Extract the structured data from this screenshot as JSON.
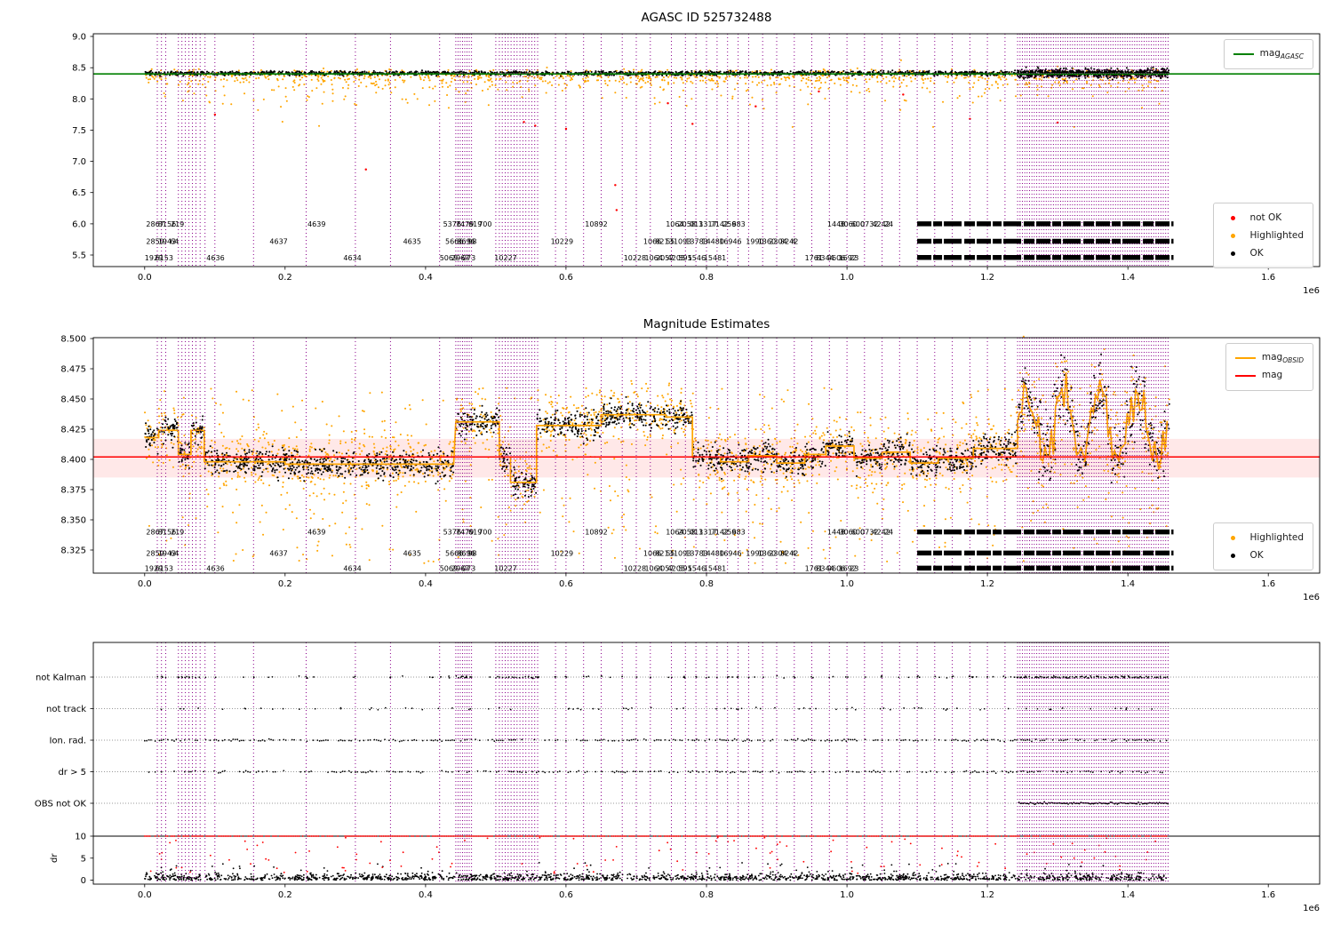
{
  "colors": {
    "background": "#ffffff",
    "axis": "#000000",
    "vline": "#8a008a",
    "green": "#008000",
    "orange": "#ffa500",
    "red": "#ff0000",
    "black": "#000000",
    "band_fill": "rgba(255,0,0,0.09)",
    "grid_dotted": "#999999"
  },
  "xaxis": {
    "ticks": [
      0.0,
      0.2,
      0.4,
      0.6,
      0.8,
      1.0,
      1.2,
      1.4,
      1.6
    ],
    "offset_label": "1e6",
    "xlim": [
      -0.0731,
      1.6731
    ]
  },
  "legends": {
    "top_line": {
      "prefix": "mag",
      "sub": "AGASC"
    },
    "top_markers": [
      {
        "label": "not OK"
      },
      {
        "label": "Highlighted"
      },
      {
        "label": "OK"
      }
    ],
    "mid_lines": [
      {
        "prefix": "mag",
        "sub": "OBSID"
      },
      {
        "prefix": "mag",
        "sub": ""
      }
    ],
    "mid_markers": [
      {
        "label": "Highlighted"
      },
      {
        "label": "OK"
      }
    ]
  },
  "chart_data": [
    {
      "type": "scatter",
      "title": "AGASC ID 525732488",
      "ylim": [
        5.315,
        9.043
      ],
      "yticks": [
        9.0,
        8.5,
        8.0,
        7.5,
        7.0,
        6.5,
        6.0,
        5.5
      ],
      "hline": {
        "y": 8.4,
        "label": "mag_AGASC"
      },
      "legend_entries": [
        "mag_AGASC",
        "not OK",
        "Highlighted",
        "OK"
      ],
      "gen": {
        "black_band": {
          "n": 2000,
          "y": 8.41,
          "sd": 0.02,
          "x0": 0.0,
          "x1": 1.455
        },
        "right_fuzz": {
          "n": 650,
          "x0": 1.243,
          "x1": 1.458,
          "y": 8.41,
          "sd": 0.045
        },
        "orange_fringe": {
          "n": 520,
          "y": 8.4,
          "sd": 0.045,
          "x0": 0.0,
          "x1": 1.455
        },
        "orange_low": {
          "n": 650,
          "top": 8.36,
          "decay": 0.13,
          "min": 7.55,
          "x0": 0.0,
          "x1": 1.455
        },
        "orange_high": [
          [
            1.077,
            8.62
          ],
          [
            1.3,
            8.52
          ]
        ],
        "red_points": [
          [
            0.1,
            7.75
          ],
          [
            0.315,
            6.87
          ],
          [
            0.54,
            7.63
          ],
          [
            0.556,
            7.57
          ],
          [
            0.6,
            7.52
          ],
          [
            0.67,
            6.62
          ],
          [
            0.672,
            6.22
          ],
          [
            0.745,
            7.93
          ],
          [
            0.78,
            7.6
          ],
          [
            0.87,
            7.88
          ],
          [
            0.96,
            8.12
          ],
          [
            1.08,
            8.07
          ],
          [
            1.175,
            7.68
          ],
          [
            1.3,
            7.62
          ]
        ]
      }
    },
    {
      "type": "scatter",
      "title": "Magnitude Estimates",
      "ylim": [
        8.3059,
        8.5007
      ],
      "yticks": [
        8.5,
        8.475,
        8.45,
        8.425,
        8.4,
        8.375,
        8.35,
        8.325
      ],
      "mag": 8.402,
      "mag_band": [
        8.385,
        8.417
      ],
      "legend_entries": [
        "mag_OBSID",
        "mag",
        "Highlighted",
        "OK"
      ],
      "segments": [
        [
          0.0,
          0.02,
          8.418
        ],
        [
          0.02,
          0.048,
          8.424
        ],
        [
          0.048,
          0.066,
          8.404
        ],
        [
          0.066,
          0.085,
          8.424
        ],
        [
          0.085,
          0.2,
          8.398
        ],
        [
          0.2,
          0.44,
          8.396
        ],
        [
          0.443,
          0.505,
          8.431
        ],
        [
          0.505,
          0.521,
          8.402
        ],
        [
          0.521,
          0.558,
          8.381
        ],
        [
          0.558,
          0.65,
          8.428
        ],
        [
          0.65,
          0.742,
          8.437
        ],
        [
          0.742,
          0.78,
          8.435
        ],
        [
          0.78,
          0.82,
          8.402
        ],
        [
          0.82,
          0.86,
          8.398
        ],
        [
          0.86,
          0.9,
          8.403
        ],
        [
          0.9,
          0.94,
          8.397
        ],
        [
          0.94,
          0.97,
          8.404
        ],
        [
          0.97,
          1.01,
          8.411
        ],
        [
          1.01,
          1.05,
          8.401
        ],
        [
          1.05,
          1.09,
          8.406
        ],
        [
          1.09,
          1.13,
          8.397
        ],
        [
          1.13,
          1.18,
          8.401
        ],
        [
          1.18,
          1.243,
          8.409
        ]
      ],
      "volatile": {
        "x0": 1.243,
        "x1": 1.458,
        "ymin": 8.363,
        "ymax": 8.49,
        "base": 8.427,
        "amp": 0.028
      },
      "gen": {
        "black_density": 1750,
        "black_sd": 0.0066,
        "orange_density": 1200,
        "orange_sd": 0.0145,
        "orange_sparse_n": 620
      }
    },
    {
      "type": "scatter",
      "title": "",
      "flag_rows": [
        "not Kalman",
        "not track",
        "Ion. rad.",
        "dr > 5",
        "OBS not OK"
      ],
      "dr": {
        "ticks": [
          10,
          5,
          0
        ],
        "hline": 10,
        "ylabel": "dr",
        "max": 10
      },
      "gen": {
        "not_kalman_extra_n": 45,
        "not_track_n": 85,
        "ion_run": [
          0.0,
          1.455,
          0.003,
          0.62
        ],
        "dr5_run": [
          0.0,
          1.455,
          0.003,
          0.5
        ],
        "obs_run": [
          1.245,
          1.458,
          0.002,
          1.0
        ],
        "dr_black_n": 1750,
        "red_line_run": [
          0.0,
          1.455,
          0.0025,
          0.82
        ],
        "red_mid_n": 115
      }
    }
  ],
  "vlines": {
    "singles": [
      0.018,
      0.024,
      0.03,
      0.048,
      0.053,
      0.058,
      0.063,
      0.068,
      0.073,
      0.079,
      0.086,
      0.1,
      0.155,
      0.23,
      0.3,
      0.35,
      0.42,
      0.5,
      0.585,
      0.6,
      0.625,
      0.65,
      0.68,
      0.7,
      0.72,
      0.75,
      0.77,
      0.785,
      0.8,
      0.815,
      0.83,
      0.845,
      0.86,
      0.88,
      0.9,
      0.925,
      0.95,
      0.975,
      1.0,
      1.025,
      1.05,
      1.075,
      1.1,
      1.125,
      1.15,
      1.175,
      1.2,
      1.225
    ],
    "bands": [
      {
        "start": 0.443,
        "end": 0.468,
        "step": 0.0032
      },
      {
        "start": 0.505,
        "end": 0.56,
        "step": 0.0042
      },
      {
        "start": 1.243,
        "end": 1.458,
        "step": 0.0034
      }
    ]
  },
  "obsid_rows": [
    {
      "mag_top": 6.0,
      "mag_mid": 8.34,
      "items": [
        {
          "x": 0.002,
          "t": "2867"
        },
        {
          "x": 0.019,
          "t": "8156"
        },
        {
          "x": 0.037,
          "t": "219"
        },
        {
          "x": 0.232,
          "t": "4639"
        },
        {
          "x": 0.425,
          "t": "5376"
        },
        {
          "x": 0.443,
          "t": "7479"
        },
        {
          "x": 0.461,
          "t": "619"
        },
        {
          "x": 0.475,
          "t": "700"
        },
        {
          "x": 0.627,
          "t": "10892"
        },
        {
          "x": 0.742,
          "t": "1064"
        },
        {
          "x": 0.759,
          "t": "2058"
        },
        {
          "x": 0.776,
          "t": "013"
        },
        {
          "x": 0.789,
          "t": "1317"
        },
        {
          "x": 0.806,
          "t": "7142"
        },
        {
          "x": 0.823,
          "t": "259"
        },
        {
          "x": 0.836,
          "t": "683"
        },
        {
          "x": 0.972,
          "t": "1448"
        },
        {
          "x": 0.989,
          "t": "3060"
        },
        {
          "x": 1.006,
          "t": "600"
        },
        {
          "x": 1.019,
          "t": "0732"
        },
        {
          "x": 1.036,
          "t": "4242"
        },
        {
          "x": 1.053,
          "t": "24"
        }
      ]
    },
    {
      "mag_top": 5.72,
      "mag_mid": 8.3225,
      "items": [
        {
          "x": 0.002,
          "t": "2859"
        },
        {
          "x": 0.019,
          "t": "1943"
        },
        {
          "x": 0.036,
          "t": "64"
        },
        {
          "x": 0.178,
          "t": "4637"
        },
        {
          "x": 0.368,
          "t": "4635"
        },
        {
          "x": 0.428,
          "t": "5666"
        },
        {
          "x": 0.445,
          "t": "8696"
        },
        {
          "x": 0.46,
          "t": "98"
        },
        {
          "x": 0.578,
          "t": "10229"
        },
        {
          "x": 0.71,
          "t": "1066"
        },
        {
          "x": 0.727,
          "t": "8213"
        },
        {
          "x": 0.742,
          "t": "55"
        },
        {
          "x": 0.753,
          "t": "1093"
        },
        {
          "x": 0.77,
          "t": "13783"
        },
        {
          "x": 0.793,
          "t": "14480"
        },
        {
          "x": 0.818,
          "t": "16946"
        },
        {
          "x": 0.856,
          "t": "1990"
        },
        {
          "x": 0.873,
          "t": "1360"
        },
        {
          "x": 0.889,
          "t": "2304"
        },
        {
          "x": 0.905,
          "t": "8242"
        },
        {
          "x": 0.921,
          "t": "4"
        }
      ]
    },
    {
      "mag_top": 5.46,
      "mag_mid": 8.31,
      "items": [
        {
          "x": 0.0,
          "t": "1929"
        },
        {
          "x": 0.015,
          "t": "6153"
        },
        {
          "x": 0.088,
          "t": "4636"
        },
        {
          "x": 0.283,
          "t": "4634"
        },
        {
          "x": 0.42,
          "t": "5069"
        },
        {
          "x": 0.437,
          "t": "2967"
        },
        {
          "x": 0.452,
          "t": "073"
        },
        {
          "x": 0.498,
          "t": "10227"
        },
        {
          "x": 0.682,
          "t": "10228"
        },
        {
          "x": 0.712,
          "t": "1064"
        },
        {
          "x": 0.728,
          "t": "2057"
        },
        {
          "x": 0.744,
          "t": "4205"
        },
        {
          "x": 0.76,
          "t": "591"
        },
        {
          "x": 0.773,
          "t": "5546"
        },
        {
          "x": 0.796,
          "t": "15481"
        },
        {
          "x": 0.94,
          "t": "1761"
        },
        {
          "x": 0.956,
          "t": "8344"
        },
        {
          "x": 0.972,
          "t": "9606"
        },
        {
          "x": 0.988,
          "t": "1692"
        },
        {
          "x": 1.004,
          "t": "23"
        }
      ]
    }
  ],
  "obsid_bars": {
    "start": 1.1,
    "end": 1.465
  }
}
